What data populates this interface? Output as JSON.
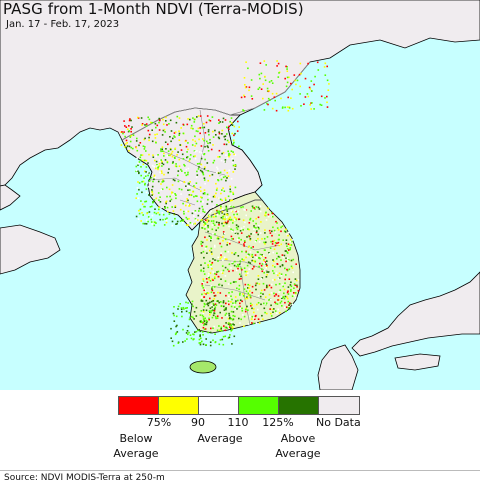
{
  "title": "PASG from 1-Month NDVI (Terra-MODIS)",
  "subtitle": "Jan. 17 - Feb. 17, 2023",
  "legend": {
    "swatch_colors": [
      "#ff0000",
      "#ffff00",
      "#ffffff",
      "#55ff00",
      "#267300",
      "#f0ecef"
    ],
    "ticks": [
      "75%",
      "90",
      "110",
      "125%",
      "No Data"
    ],
    "categories": {
      "below": [
        "Below",
        "Average"
      ],
      "average": "Average",
      "above": [
        "Above",
        "Average"
      ]
    }
  },
  "source": "Source: NDVI MODIS-Terra at 250-m",
  "colors": {
    "sea": "#c7ffff",
    "land": "#f0ecef",
    "border": "#8a8a8a",
    "coast": "#000000"
  }
}
